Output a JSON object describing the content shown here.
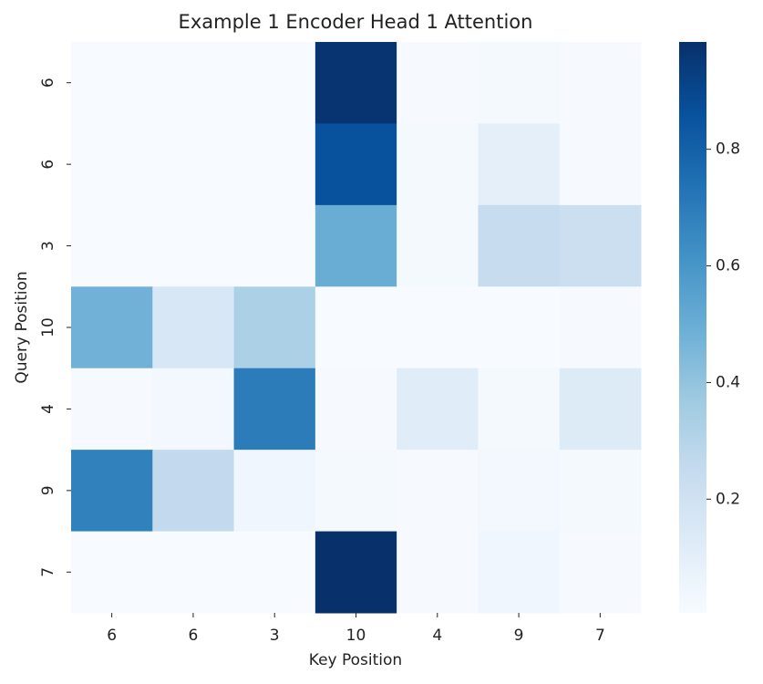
{
  "chart_data": {
    "type": "heatmap",
    "title": "Example 1 Encoder Head 1 Attention",
    "x_label": "Key Position",
    "y_label": "Query Position",
    "x_categories": [
      "6",
      "6",
      "3",
      "10",
      "4",
      "9",
      "7"
    ],
    "y_categories": [
      "6",
      "6",
      "3",
      "10",
      "4",
      "9",
      "7"
    ],
    "values": [
      [
        0.005,
        0.005,
        0.005,
        0.97,
        0.01,
        0.02,
        0.01
      ],
      [
        0.005,
        0.005,
        0.005,
        0.86,
        0.02,
        0.1,
        0.01
      ],
      [
        0.005,
        0.005,
        0.005,
        0.5,
        0.02,
        0.24,
        0.22
      ],
      [
        0.48,
        0.16,
        0.33,
        0.005,
        0.005,
        0.005,
        0.01
      ],
      [
        0.01,
        0.03,
        0.7,
        0.01,
        0.12,
        0.02,
        0.13
      ],
      [
        0.68,
        0.26,
        0.04,
        0.02,
        0.01,
        0.03,
        0.02
      ],
      [
        0.005,
        0.005,
        0.005,
        0.984,
        0.01,
        0.04,
        0.01
      ]
    ],
    "colormap": [
      "#f7fbff",
      "#deebf7",
      "#c6dbef",
      "#9ecae1",
      "#6baed6",
      "#4292c6",
      "#2171b5",
      "#08519c",
      "#08306b"
    ],
    "clim": [
      0.005,
      0.984
    ],
    "cbar_ticks": [
      0.2,
      0.4,
      0.6,
      0.8
    ]
  }
}
